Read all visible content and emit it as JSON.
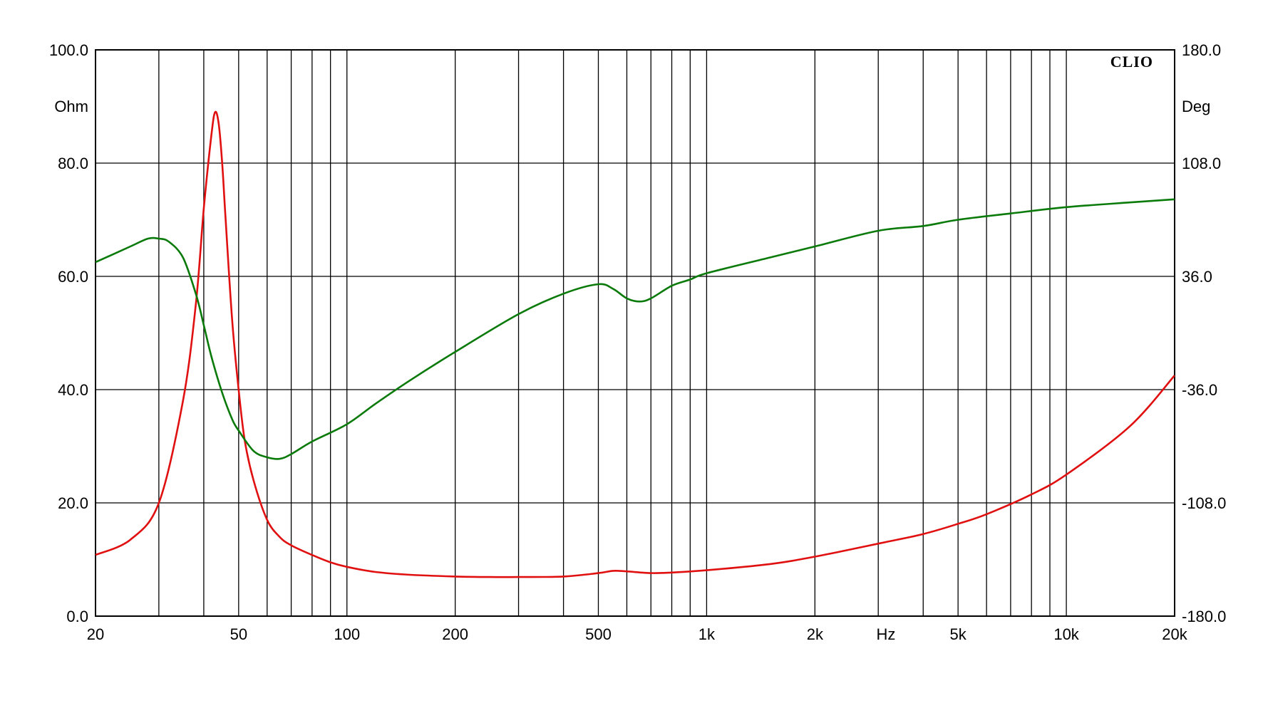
{
  "chart_data": {
    "type": "line",
    "brand": "CLIO",
    "x_scale": "log",
    "xlim": [
      20,
      20000
    ],
    "ylim_left": [
      0,
      100
    ],
    "ylim_right": [
      -180,
      180
    ],
    "grid": true,
    "left_unit": "Ohm",
    "right_unit": "Deg",
    "x_unit": "Hz",
    "x_tick_labels": [
      {
        "value": 20,
        "label": "20"
      },
      {
        "value": 50,
        "label": "50"
      },
      {
        "value": 100,
        "label": "100"
      },
      {
        "value": 200,
        "label": "200"
      },
      {
        "value": 500,
        "label": "500"
      },
      {
        "value": 1000,
        "label": "1k"
      },
      {
        "value": 2000,
        "label": "2k"
      },
      {
        "value": 5000,
        "label": "5k"
      },
      {
        "value": 10000,
        "label": "10k"
      },
      {
        "value": 20000,
        "label": "20k"
      }
    ],
    "x_grid_values": [
      30,
      40,
      50,
      60,
      70,
      80,
      90,
      100,
      200,
      300,
      400,
      500,
      600,
      700,
      800,
      900,
      1000,
      2000,
      3000,
      4000,
      5000,
      6000,
      7000,
      8000,
      9000,
      10000,
      20000
    ],
    "y_left_tick_labels": [
      "0.0",
      "20.0",
      "40.0",
      "60.0",
      "80.0",
      "100.0"
    ],
    "y_right_tick_labels": [
      "-180.0",
      "-108.0",
      "-36.0",
      "36.0",
      "108.0",
      "180.0"
    ],
    "series": [
      {
        "axis": "left",
        "color": "#e01010",
        "x": [
          20,
          25,
          30,
          35,
          38,
          40,
          42,
          43,
          44,
          45,
          46,
          48,
          50,
          52,
          55,
          60,
          65,
          70,
          80,
          90,
          100,
          120,
          150,
          200,
          250,
          300,
          400,
          500,
          550,
          600,
          700,
          800,
          1000,
          1500,
          2000,
          3000,
          4000,
          5000,
          6000,
          8000,
          10000,
          15000,
          20000
        ],
        "y": [
          10.8,
          13.5,
          20,
          38,
          55,
          72,
          85,
          89,
          87,
          80,
          70,
          52,
          40,
          31,
          24,
          17,
          14,
          12.5,
          10.8,
          9.5,
          8.7,
          7.8,
          7.3,
          7.0,
          6.9,
          6.9,
          7.0,
          7.6,
          8.0,
          7.9,
          7.6,
          7.7,
          8.1,
          9.2,
          10.5,
          12.8,
          14.5,
          16.3,
          18,
          21.5,
          25,
          33.5,
          42.5
        ]
      },
      {
        "axis": "right",
        "color": "#0a7a0a",
        "x": [
          20,
          25,
          28,
          30,
          32,
          35,
          38,
          40,
          42,
          45,
          48,
          50,
          55,
          60,
          65,
          70,
          80,
          100,
          120,
          150,
          200,
          300,
          400,
          500,
          550,
          600,
          650,
          700,
          800,
          900,
          1000,
          1500,
          2000,
          3000,
          4000,
          5000,
          7000,
          10000,
          15000,
          20000
        ],
        "y": [
          45,
          55,
          60,
          60,
          58,
          48,
          25,
          5,
          -15,
          -38,
          -55,
          -62,
          -75,
          -79,
          -80,
          -77,
          -69,
          -58,
          -45,
          -30,
          -12,
          12,
          25,
          31,
          28,
          22,
          20,
          22,
          30,
          34,
          38,
          48,
          55,
          65,
          68,
          72,
          76,
          80,
          83,
          85
        ]
      }
    ]
  }
}
